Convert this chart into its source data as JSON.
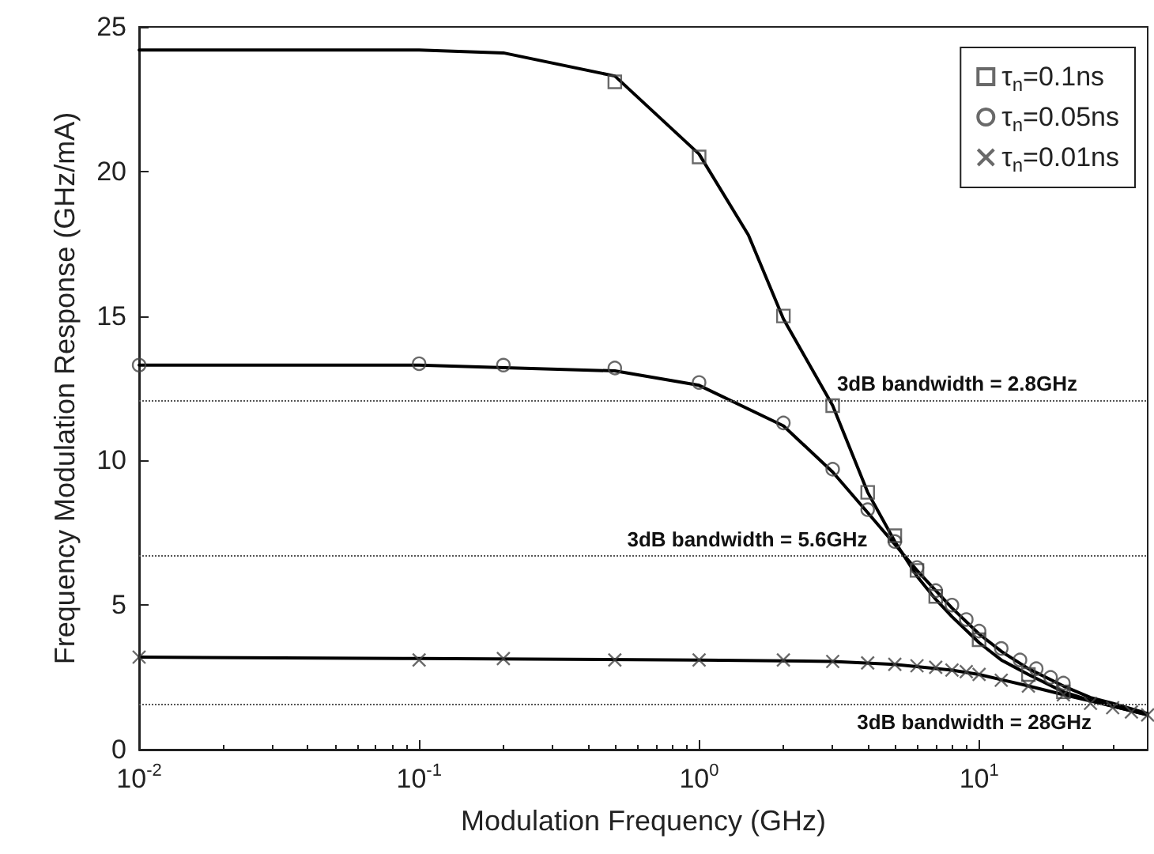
{
  "chart_data": {
    "type": "line",
    "xlabel": "Modulation Frequency (GHz)",
    "ylabel": "Frequency Modulation Response (GHz/mA)",
    "log": "x",
    "xlim": [
      0.01,
      40
    ],
    "xticks": [
      {
        "value": 0.01,
        "label": "10$^{-2}$"
      },
      {
        "value": 0.1,
        "label": "10$^{-1}$"
      },
      {
        "value": 1,
        "label": "10$^{0}$"
      },
      {
        "value": 10,
        "label": "10$^{1}$"
      }
    ],
    "ylim": [
      0,
      25
    ],
    "yticks": [
      0,
      5,
      10,
      15,
      20,
      25
    ],
    "grid": false,
    "legend": "top right",
    "series": [
      {
        "type": "scatter",
        "name": "τ$_{n}$=0.1ns",
        "marker": "square",
        "color": "#444444",
        "x": [
          0.5,
          1,
          2,
          3,
          4,
          5,
          6,
          7,
          10,
          15,
          20
        ],
        "values": [
          23.1,
          20.5,
          15.0,
          11.9,
          8.9,
          7.4,
          6.2,
          5.3,
          3.8,
          2.6,
          2.0
        ]
      },
      {
        "type": "scatter",
        "name": "τ$_{n}$=0.05ns",
        "marker": "circle",
        "color": "#444444",
        "x": [
          0.01,
          0.1,
          0.2,
          0.5,
          1,
          2,
          3,
          4,
          5,
          6,
          7,
          8,
          9,
          10,
          12,
          14,
          16,
          18,
          20
        ],
        "values": [
          13.3,
          13.35,
          13.3,
          13.2,
          12.7,
          11.3,
          9.7,
          8.3,
          7.2,
          6.3,
          5.5,
          5.0,
          4.5,
          4.1,
          3.5,
          3.1,
          2.8,
          2.5,
          2.3
        ]
      },
      {
        "type": "scatter",
        "name": "τ$_{n}$=0.01ns",
        "marker": "cross",
        "color": "#444444",
        "x": [
          0.01,
          0.1,
          0.2,
          0.5,
          1,
          2,
          3,
          4,
          5,
          6,
          7,
          8,
          9,
          10,
          12,
          15,
          20,
          25,
          30,
          35,
          40
        ],
        "values": [
          3.2,
          3.1,
          3.15,
          3.1,
          3.1,
          3.1,
          3.05,
          3.0,
          2.95,
          2.9,
          2.85,
          2.75,
          2.7,
          2.6,
          2.4,
          2.2,
          1.9,
          1.6,
          1.45,
          1.3,
          1.2
        ]
      },
      {
        "type": "line",
        "marker": "none",
        "color": "#000000",
        "x": [
          0.01,
          0.1,
          0.2,
          0.5,
          1,
          1.5,
          2,
          3,
          4,
          5,
          6,
          7,
          8,
          10,
          12,
          15,
          20,
          25,
          30,
          40
        ],
        "values": [
          24.2,
          24.2,
          24.1,
          23.3,
          20.6,
          17.8,
          14.9,
          11.9,
          8.9,
          7.2,
          6.0,
          5.2,
          4.6,
          3.7,
          3.1,
          2.6,
          2.0,
          1.7,
          1.5,
          1.2
        ]
      },
      {
        "type": "line",
        "marker": "none",
        "color": "#000000",
        "x": [
          0.01,
          0.1,
          0.5,
          1,
          2,
          3,
          4,
          5,
          6,
          7,
          8,
          10,
          12,
          15,
          20,
          25,
          30,
          40
        ],
        "values": [
          13.3,
          13.3,
          13.1,
          12.6,
          11.2,
          9.6,
          8.2,
          7.1,
          6.2,
          5.5,
          4.9,
          4.0,
          3.4,
          2.8,
          2.2,
          1.8,
          1.6,
          1.25
        ]
      },
      {
        "type": "line",
        "marker": "none",
        "color": "#000000",
        "x": [
          0.01,
          0.1,
          1,
          3,
          5,
          8,
          10,
          15,
          20,
          30,
          40
        ],
        "values": [
          3.2,
          3.15,
          3.1,
          3.05,
          2.95,
          2.75,
          2.6,
          2.2,
          1.9,
          1.5,
          1.2
        ]
      }
    ],
    "ref_lines": [
      {
        "axis": "y",
        "value": 12.1,
        "color": "#555555",
        "line_style": "dotted"
      },
      {
        "axis": "y",
        "value": 6.7,
        "color": "#555555",
        "line_style": "dotted"
      },
      {
        "axis": "y",
        "value": 1.6,
        "color": "#555555",
        "line_style": "dotted"
      }
    ],
    "annotations": [
      {
        "text": "3dB bandwidth = 2.8GHz",
        "x": 2.8,
        "y": 12.1
      },
      {
        "text": "3dB bandwidth = 5.6GHz",
        "x": 5.6,
        "y": 6.7
      },
      {
        "text": "3dB bandwidth = 28GHz",
        "x": 28,
        "y": 1.6
      }
    ]
  }
}
